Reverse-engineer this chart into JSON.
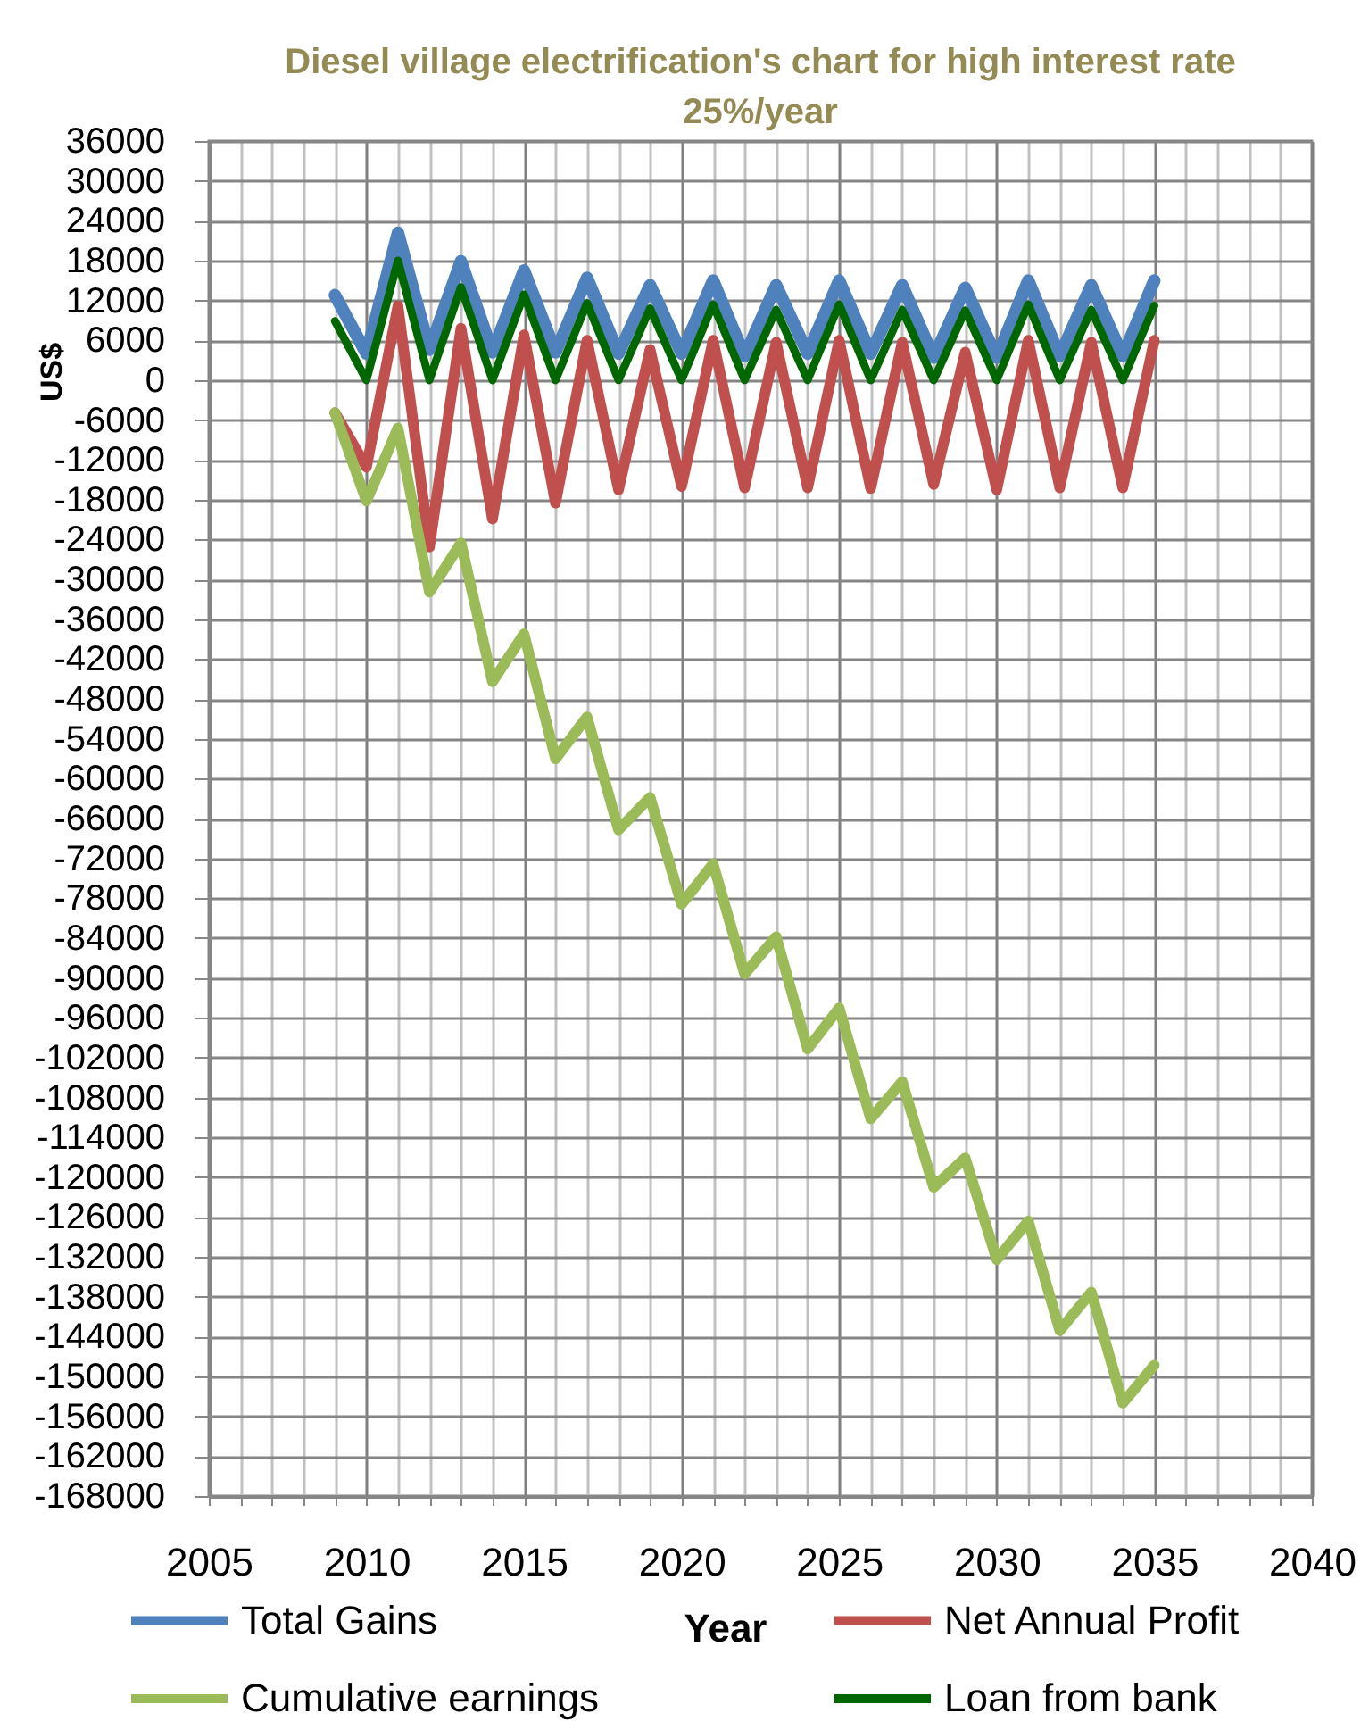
{
  "chart_data": {
    "type": "line",
    "title": "Diesel village electrification's chart for high interest rate 25%/year",
    "xlabel": "Year",
    "ylabel": "US$",
    "x": [
      2009,
      2010,
      2011,
      2012,
      2013,
      2014,
      2015,
      2016,
      2017,
      2018,
      2019,
      2020,
      2021,
      2022,
      2023,
      2024,
      2025,
      2026,
      2027,
      2028,
      2029,
      2030,
      2031,
      2032,
      2033,
      2034,
      2035
    ],
    "series": [
      {
        "name": "Total Gains",
        "color": "#4f81bd",
        "values": [
          12800,
          4000,
          22200,
          4600,
          17900,
          4200,
          16500,
          4200,
          15400,
          4000,
          14300,
          4000,
          15000,
          3600,
          14300,
          4000,
          15000,
          4000,
          14300,
          3400,
          13900,
          3400,
          15000,
          3600,
          14300,
          3600,
          15000
        ]
      },
      {
        "name": "Net Annual Profit",
        "color": "#c0504d",
        "values": [
          -4900,
          -13100,
          11200,
          -25100,
          7800,
          -20900,
          6800,
          -18500,
          6000,
          -16500,
          4600,
          -16000,
          6000,
          -16200,
          5700,
          -16200,
          6000,
          -16300,
          5700,
          -15700,
          4200,
          -16500,
          6000,
          -16200,
          5700,
          -16200,
          6000
        ]
      },
      {
        "name": "Cumulative earnings",
        "color": "#9bbb59",
        "values": [
          -4900,
          -18200,
          -7200,
          -31900,
          -24500,
          -45400,
          -38200,
          -57000,
          -50700,
          -67700,
          -62800,
          -78900,
          -72800,
          -89400,
          -83800,
          -100700,
          -94500,
          -111200,
          -105600,
          -121500,
          -117100,
          -132400,
          -126600,
          -143100,
          -137300,
          -154000,
          -148300
        ]
      },
      {
        "name": "Loan from bank",
        "color": "#006600",
        "values": [
          8900,
          0,
          18000,
          0,
          14000,
          0,
          12900,
          0,
          11600,
          0,
          10800,
          0,
          11400,
          0,
          10600,
          0,
          11400,
          0,
          10600,
          0,
          10500,
          0,
          11400,
          0,
          10600,
          0,
          11200
        ]
      }
    ],
    "xlim": [
      2005,
      2040
    ],
    "xticks": [
      2005,
      {
        "value": 2006,
        "label": null
      },
      {
        "value": 2007,
        "label": null
      },
      {
        "value": 2008,
        "label": null
      },
      {
        "value": 2009,
        "label": null
      },
      2010,
      {
        "value": 2011,
        "label": null
      },
      {
        "value": 2012,
        "label": null
      },
      {
        "value": 2013,
        "label": null
      },
      {
        "value": 2014,
        "label": null
      },
      2015,
      {
        "value": 2016,
        "label": null
      },
      {
        "value": 2017,
        "label": null
      },
      {
        "value": 2018,
        "label": null
      },
      {
        "value": 2019,
        "label": null
      },
      2020,
      {
        "value": 2021,
        "label": null
      },
      {
        "value": 2022,
        "label": null
      },
      {
        "value": 2023,
        "label": null
      },
      {
        "value": 2024,
        "label": null
      },
      2025,
      {
        "value": 2026,
        "label": null
      },
      {
        "value": 2027,
        "label": null
      },
      {
        "value": 2028,
        "label": null
      },
      {
        "value": 2029,
        "label": null
      },
      2030,
      {
        "value": 2031,
        "label": null
      },
      {
        "value": 2032,
        "label": null
      },
      {
        "value": 2033,
        "label": null
      },
      {
        "value": 2034,
        "label": null
      },
      2035,
      {
        "value": 2036,
        "label": null
      },
      {
        "value": 2037,
        "label": null
      },
      {
        "value": 2038,
        "label": null
      },
      {
        "value": 2039,
        "label": null
      },
      2040
    ],
    "ylim": [
      -168000,
      36000
    ],
    "yticks": [
      -168000,
      -162000,
      -156000,
      -150000,
      -144000,
      -138000,
      -132000,
      -126000,
      -120000,
      -114000,
      -108000,
      -102000,
      -96000,
      -90000,
      -84000,
      -78000,
      -72000,
      -66000,
      -60000,
      -54000,
      -48000,
      -42000,
      -36000,
      -30000,
      -24000,
      -18000,
      -12000,
      -6000,
      0,
      6000,
      12000,
      18000,
      24000,
      30000,
      36000
    ],
    "grid": true,
    "legend": "bottom"
  }
}
